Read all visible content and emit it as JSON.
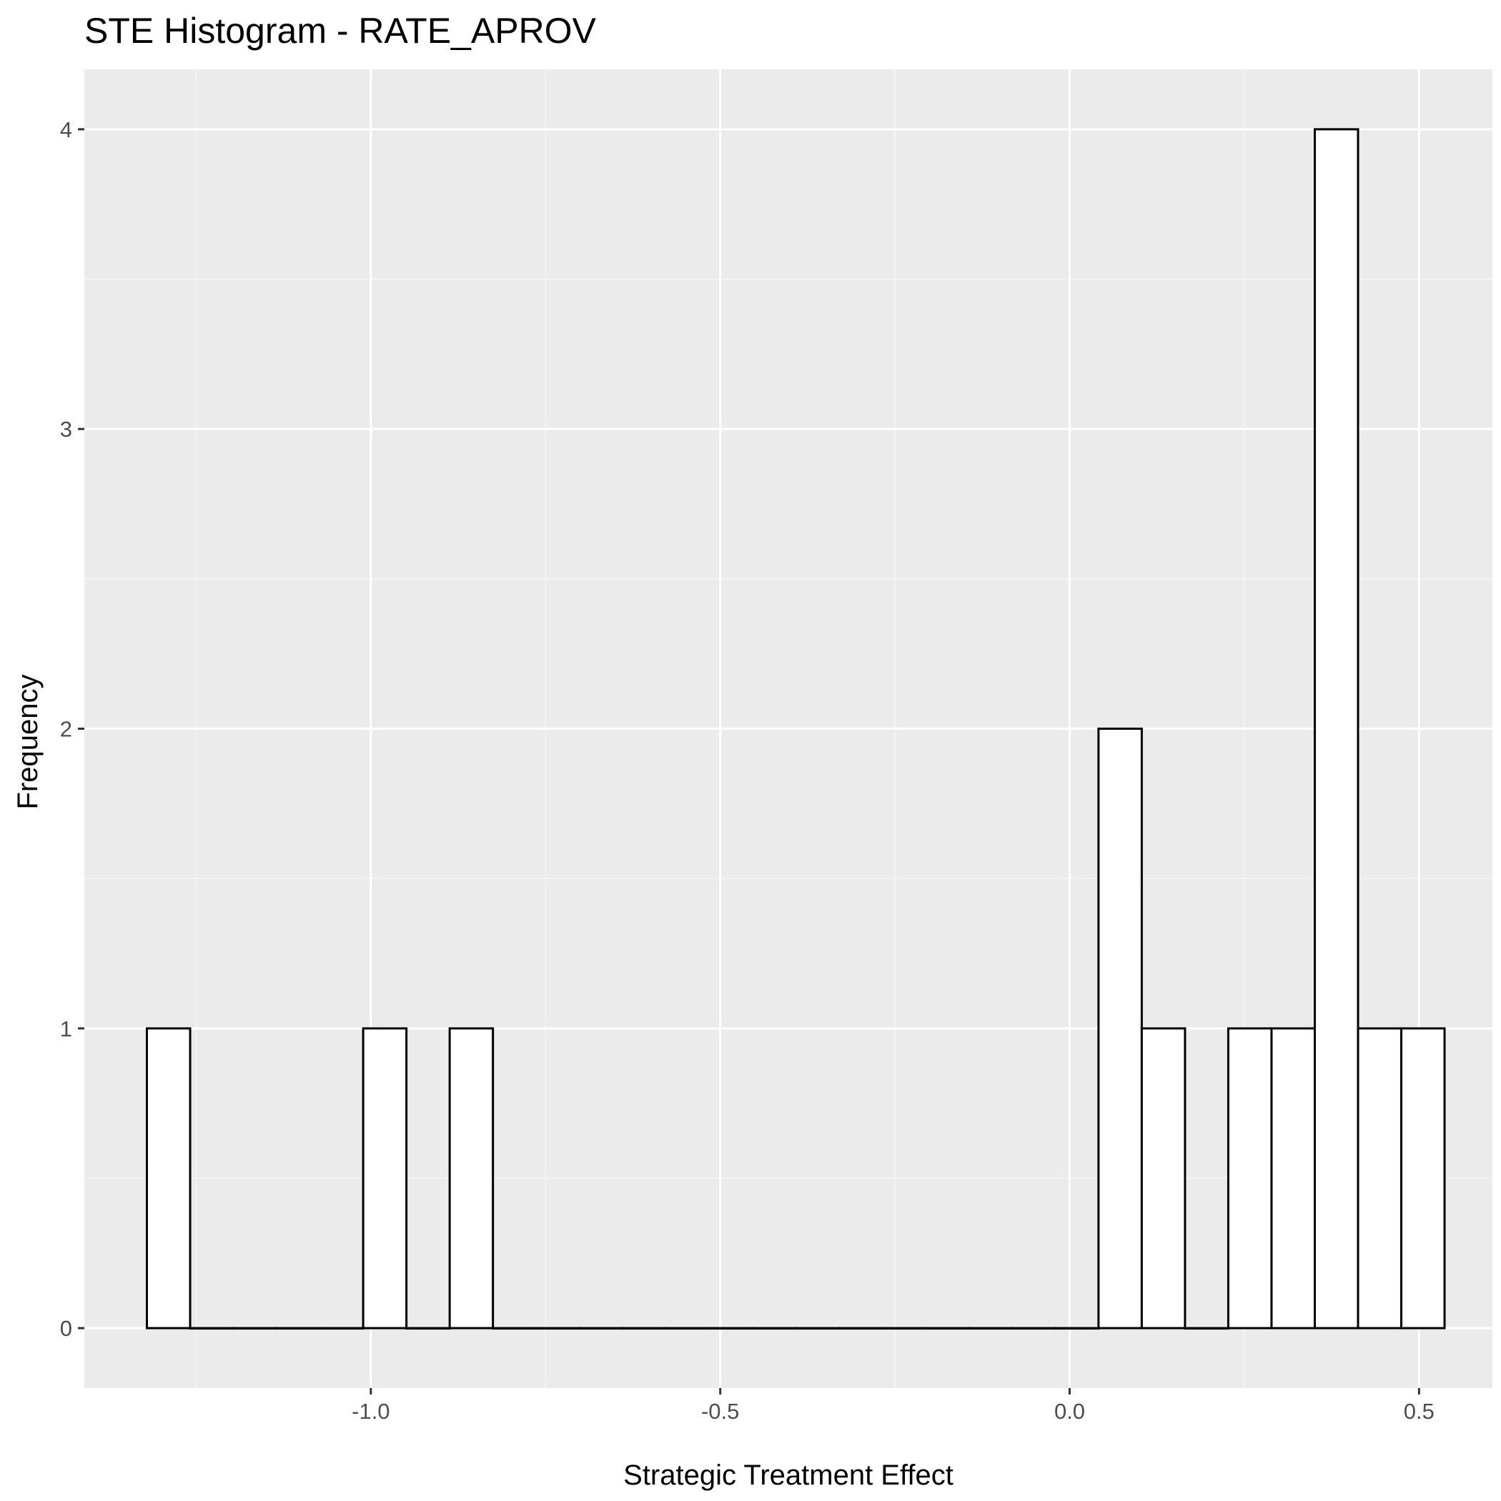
{
  "chart_data": {
    "type": "bar",
    "title": "STE Histogram -  RATE_APROV",
    "xlabel": "Strategic Treatment Effect",
    "ylabel": "Frequency",
    "xlim": [
      -1.41,
      0.605
    ],
    "ylim": [
      -0.2,
      4.2
    ],
    "x_ticks": [
      -1.0,
      -0.5,
      0.0,
      0.5
    ],
    "x_tick_labels": [
      "-1.0",
      "-0.5",
      "0.0",
      "0.5"
    ],
    "y_ticks": [
      0,
      1,
      2,
      3,
      4
    ],
    "y_tick_labels": [
      "0",
      "1",
      "2",
      "3",
      "4"
    ],
    "bin_width": 0.0619,
    "bins": [
      {
        "x0": -1.3205,
        "x1": -1.2586,
        "count": 1
      },
      {
        "x0": -1.2586,
        "x1": -1.1967,
        "count": 0
      },
      {
        "x0": -1.1967,
        "x1": -1.1348,
        "count": 0
      },
      {
        "x0": -1.1348,
        "x1": -1.0729,
        "count": 0
      },
      {
        "x0": -1.0729,
        "x1": -1.011,
        "count": 0
      },
      {
        "x0": -1.011,
        "x1": -0.9491,
        "count": 1
      },
      {
        "x0": -0.9491,
        "x1": -0.8872,
        "count": 0
      },
      {
        "x0": -0.8872,
        "x1": -0.8253,
        "count": 1
      },
      {
        "x0": -0.8253,
        "x1": -0.7634,
        "count": 0
      },
      {
        "x0": -0.7634,
        "x1": -0.7015,
        "count": 0
      },
      {
        "x0": -0.7015,
        "x1": -0.6396,
        "count": 0
      },
      {
        "x0": -0.6396,
        "x1": -0.5777,
        "count": 0
      },
      {
        "x0": -0.5777,
        "x1": -0.5158,
        "count": 0
      },
      {
        "x0": -0.5158,
        "x1": -0.4539,
        "count": 0
      },
      {
        "x0": -0.4539,
        "x1": -0.392,
        "count": 0
      },
      {
        "x0": -0.392,
        "x1": -0.3301,
        "count": 0
      },
      {
        "x0": -0.3301,
        "x1": -0.2682,
        "count": 0
      },
      {
        "x0": -0.2682,
        "x1": -0.2063,
        "count": 0
      },
      {
        "x0": -0.2063,
        "x1": -0.1444,
        "count": 0
      },
      {
        "x0": -0.1444,
        "x1": -0.0825,
        "count": 0
      },
      {
        "x0": -0.0825,
        "x1": -0.0206,
        "count": 0
      },
      {
        "x0": -0.0206,
        "x1": 0.0413,
        "count": 0
      },
      {
        "x0": 0.0413,
        "x1": 0.1032,
        "count": 2
      },
      {
        "x0": 0.1032,
        "x1": 0.1651,
        "count": 1
      },
      {
        "x0": 0.1651,
        "x1": 0.227,
        "count": 0
      },
      {
        "x0": 0.227,
        "x1": 0.2889,
        "count": 1
      },
      {
        "x0": 0.2889,
        "x1": 0.3508,
        "count": 1
      },
      {
        "x0": 0.3508,
        "x1": 0.4127,
        "count": 4
      },
      {
        "x0": 0.4127,
        "x1": 0.4746,
        "count": 1
      },
      {
        "x0": 0.4746,
        "x1": 0.5365,
        "count": 1
      }
    ],
    "grid": true,
    "legend": "none",
    "colors": {
      "panel_background": "#ebebeb",
      "grid_major": "#ffffff",
      "grid_minor": "#f5f5f5",
      "bar_fill": "#ffffff",
      "bar_stroke": "#000000",
      "tick_label": "#4d4d4d",
      "tick_mark": "#333333"
    }
  }
}
